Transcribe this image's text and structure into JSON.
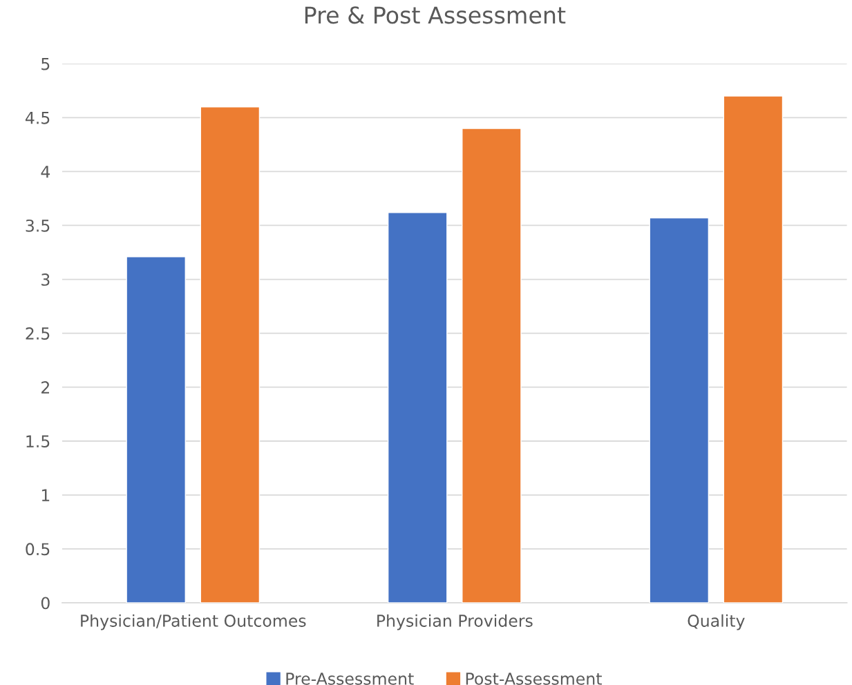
{
  "chart_data": {
    "type": "bar",
    "title": "Pre & Post Assessment",
    "categories": [
      "Physician/Patient Outcomes",
      "Physician Providers",
      "Quality"
    ],
    "series": [
      {
        "name": "Pre-Assessment",
        "color": "#4472c4",
        "values": [
          3.21,
          3.62,
          3.57
        ]
      },
      {
        "name": "Post-Assessment",
        "color": "#ed7d31",
        "values": [
          4.6,
          4.4,
          4.7
        ]
      }
    ],
    "ylim": [
      0,
      5
    ],
    "yticks": [
      0,
      0.5,
      1,
      1.5,
      2,
      2.5,
      3,
      3.5,
      4,
      4.5,
      5
    ],
    "grid": "y",
    "legend": "bottom"
  }
}
